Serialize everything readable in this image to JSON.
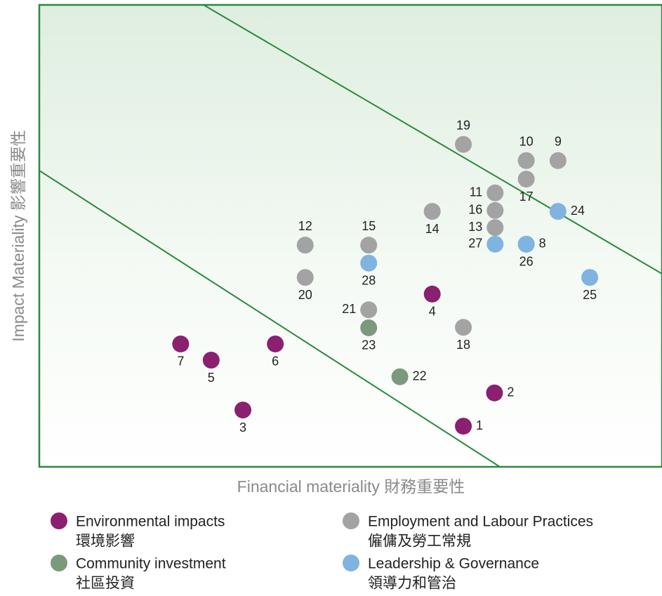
{
  "chart_data": {
    "type": "scatter",
    "xlabel": "Financial materiality  財務重要性",
    "ylabel": "Impact Materiality  影響重要性",
    "xlim": [
      0,
      100
    ],
    "ylim": [
      0,
      100
    ],
    "series": [
      {
        "name": "Environmental impacts",
        "name_zh": "環境影響",
        "color": "#8b1f70",
        "labels": [
          "1",
          "2",
          "3",
          "4",
          "5",
          "6",
          "7"
        ],
        "x": [
          68.1,
          73.1,
          32.7,
          63.1,
          27.6,
          37.9,
          22.7
        ],
        "y": [
          8.8,
          16.0,
          12.3,
          37.4,
          23.1,
          26.6,
          26.6
        ]
      },
      {
        "name": "Community investment",
        "name_zh": "社區投資",
        "color": "#7a9a7b",
        "labels": [
          "22",
          "23"
        ],
        "x": [
          57.9,
          52.9
        ],
        "y": [
          19.5,
          30.1
        ]
      },
      {
        "name": "Employment and Labour Practices",
        "name_zh": "僱傭及勞工常規",
        "color": "#a3a3a3",
        "labels": [
          "9",
          "10",
          "11",
          "12",
          "13",
          "14",
          "15",
          "16",
          "17",
          "18",
          "19",
          "20",
          "21"
        ],
        "x": [
          83.3,
          78.2,
          73.2,
          42.7,
          73.2,
          63.1,
          52.9,
          73.2,
          78.2,
          68.1,
          68.1,
          42.7,
          52.9
        ],
        "y": [
          66.3,
          66.3,
          59.3,
          48.0,
          51.8,
          55.3,
          48.0,
          55.5,
          62.3,
          30.2,
          69.8,
          41.0,
          34.0
        ]
      },
      {
        "name": "Leadership & Governance",
        "name_zh": "領導力和管治",
        "color": "#80b3df",
        "labels": [
          "8",
          "24",
          "25",
          "26",
          "27",
          "28"
        ],
        "x": [
          78.2,
          83.3,
          88.4,
          78.2,
          73.2,
          52.9
        ],
        "y": [
          48.2,
          55.3,
          41.0,
          48.2,
          48.2,
          44.1
        ]
      }
    ]
  }
}
